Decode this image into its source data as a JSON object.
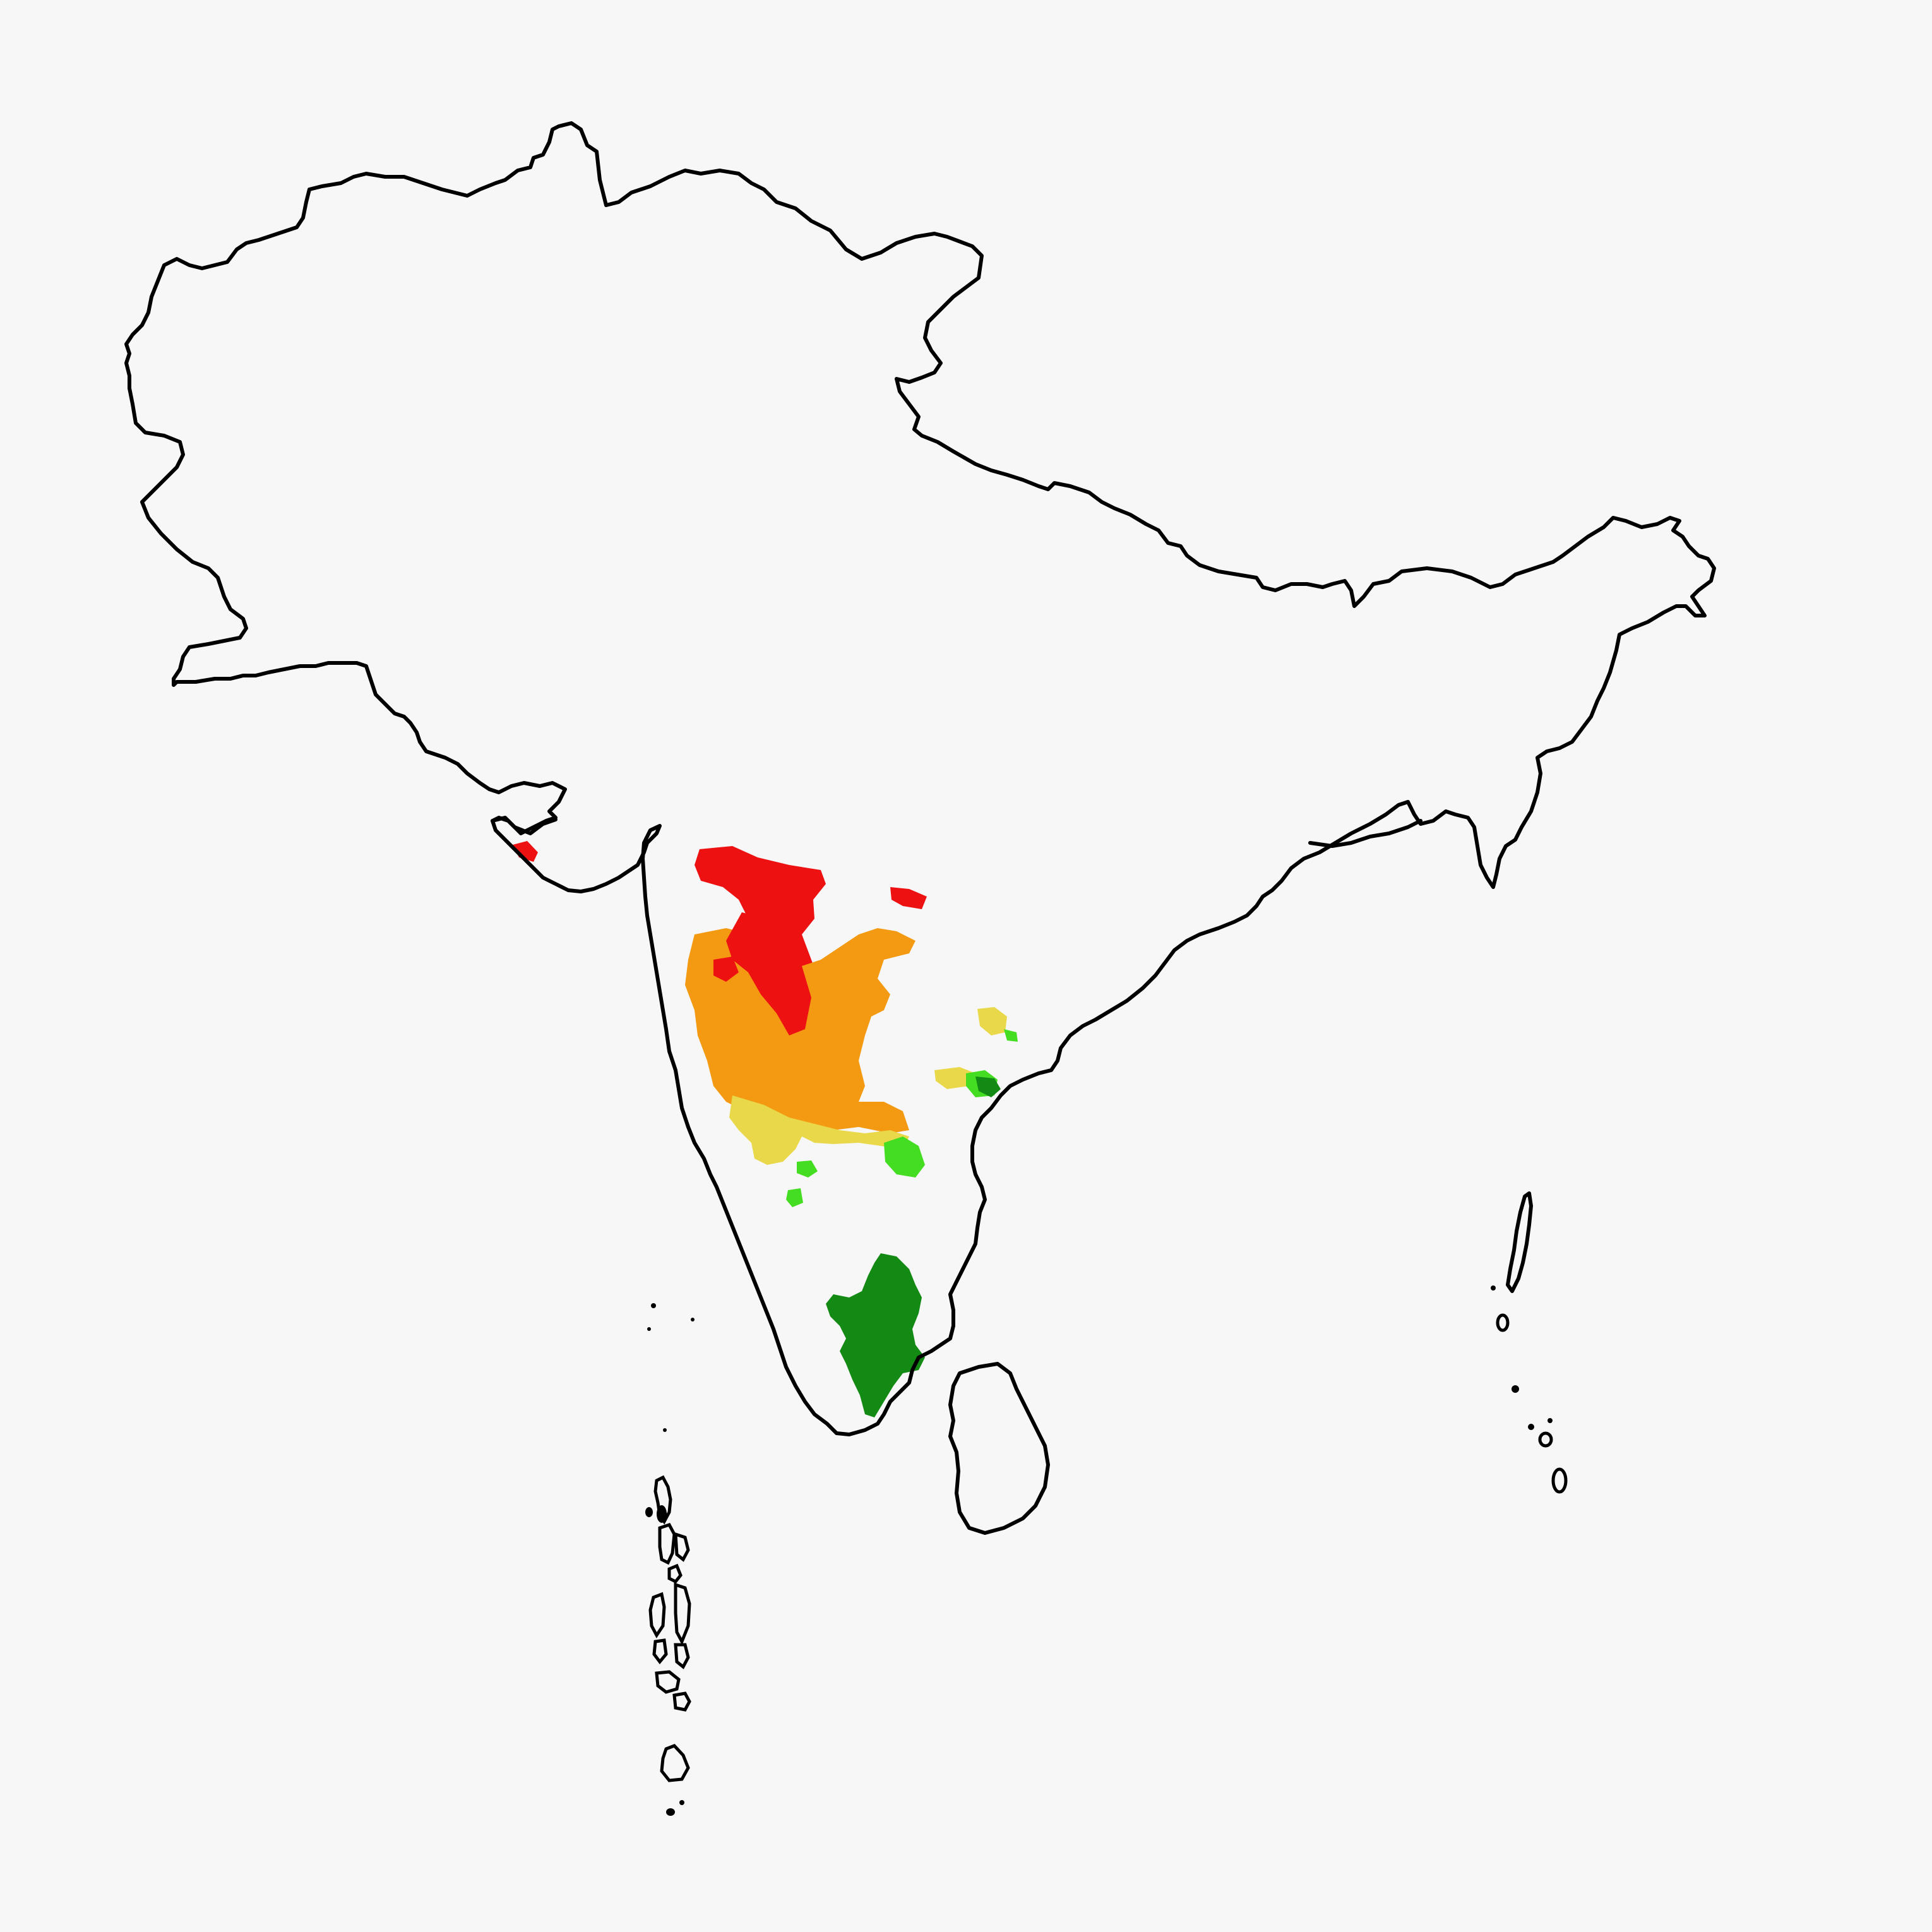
{
  "map": {
    "background": "#f7f7f7",
    "outline_color": "#000000",
    "region_colors": {
      "red": "#ee1111",
      "orange": "#f39a12",
      "yellow": "#e9d94a",
      "light_green": "#44dd22",
      "dark_green": "#138a13"
    },
    "regions": [
      {
        "id": "north-deccan",
        "category": "red"
      },
      {
        "id": "central-deccan",
        "category": "orange"
      },
      {
        "id": "south-deccan",
        "category": "yellow"
      },
      {
        "id": "eastern-ghats-patches",
        "category": "light_green"
      },
      {
        "id": "tamil-nadu-interior",
        "category": "dark_green"
      },
      {
        "id": "kutch-patch",
        "category": "red"
      }
    ]
  }
}
